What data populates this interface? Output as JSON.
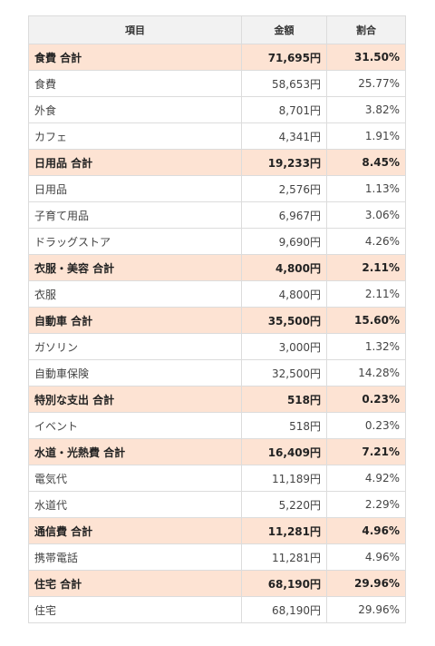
{
  "header": {
    "item": "項目",
    "amount": "金額",
    "ratio": "割合"
  },
  "rows": [
    {
      "type": "total",
      "name": "食費 合計",
      "amount": "71,695円",
      "ratio": "31.50%"
    },
    {
      "type": "item",
      "name": "食費",
      "amount": "58,653円",
      "ratio": "25.77%"
    },
    {
      "type": "item",
      "name": "外食",
      "amount": "8,701円",
      "ratio": "3.82%"
    },
    {
      "type": "item",
      "name": "カフェ",
      "amount": "4,341円",
      "ratio": "1.91%"
    },
    {
      "type": "total",
      "name": "日用品 合計",
      "amount": "19,233円",
      "ratio": "8.45%"
    },
    {
      "type": "item",
      "name": "日用品",
      "amount": "2,576円",
      "ratio": "1.13%"
    },
    {
      "type": "item",
      "name": "子育て用品",
      "amount": "6,967円",
      "ratio": "3.06%"
    },
    {
      "type": "item",
      "name": "ドラッグストア",
      "amount": "9,690円",
      "ratio": "4.26%"
    },
    {
      "type": "total",
      "name": "衣服・美容 合計",
      "amount": "4,800円",
      "ratio": "2.11%"
    },
    {
      "type": "item",
      "name": "衣服",
      "amount": "4,800円",
      "ratio": "2.11%"
    },
    {
      "type": "total",
      "name": "自動車 合計",
      "amount": "35,500円",
      "ratio": "15.60%"
    },
    {
      "type": "item",
      "name": "ガソリン",
      "amount": "3,000円",
      "ratio": "1.32%"
    },
    {
      "type": "item",
      "name": "自動車保険",
      "amount": "32,500円",
      "ratio": "14.28%"
    },
    {
      "type": "total",
      "name": "特別な支出 合計",
      "amount": "518円",
      "ratio": "0.23%"
    },
    {
      "type": "item",
      "name": "イベント",
      "amount": "518円",
      "ratio": "0.23%"
    },
    {
      "type": "total",
      "name": "水道・光熱費 合計",
      "amount": "16,409円",
      "ratio": "7.21%"
    },
    {
      "type": "item",
      "name": "電気代",
      "amount": "11,189円",
      "ratio": "4.92%"
    },
    {
      "type": "item",
      "name": "水道代",
      "amount": "5,220円",
      "ratio": "2.29%"
    },
    {
      "type": "total",
      "name": "通信費 合計",
      "amount": "11,281円",
      "ratio": "4.96%"
    },
    {
      "type": "item",
      "name": "携帯電話",
      "amount": "11,281円",
      "ratio": "4.96%"
    },
    {
      "type": "total",
      "name": "住宅 合計",
      "amount": "68,190円",
      "ratio": "29.96%"
    },
    {
      "type": "item",
      "name": "住宅",
      "amount": "68,190円",
      "ratio": "29.96%"
    }
  ]
}
